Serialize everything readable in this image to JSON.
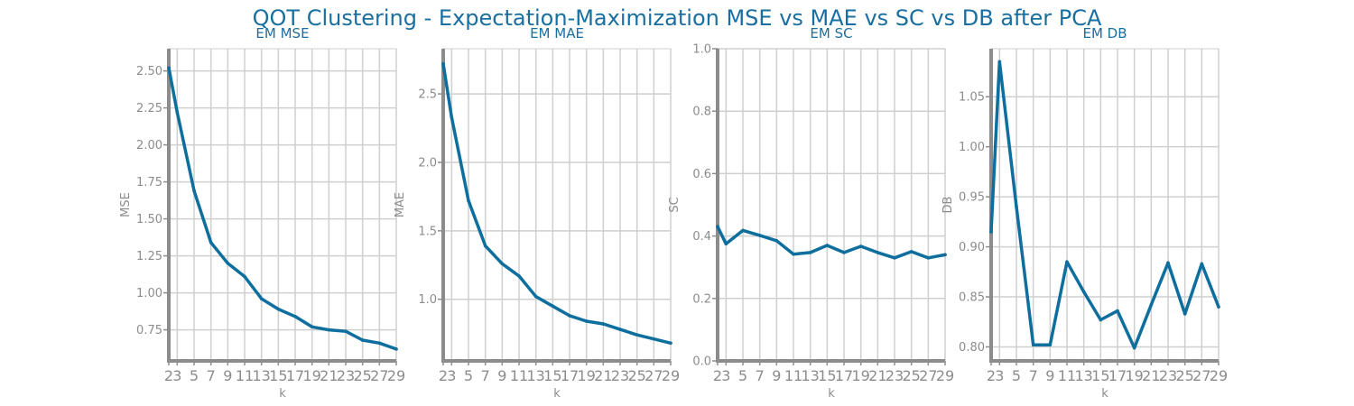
{
  "title": "QOT Clustering - Expectation-Maximization MSE vs MAE vs SC vs DB after PCA",
  "colors": {
    "title": "#1a6fa0",
    "line": "#0e6f9e",
    "grid": "#cfcfcf",
    "spine": "#8c8c8c",
    "tick_label": "#8c8c8c"
  },
  "chart_data": [
    {
      "type": "line",
      "title": "EM MSE",
      "xlabel": "k",
      "ylabel": "MSE",
      "xlim": [
        2,
        29
      ],
      "ylim": [
        0.54,
        2.65
      ],
      "xticks": [
        2,
        3,
        5,
        7,
        9,
        11,
        13,
        15,
        17,
        19,
        21,
        23,
        25,
        27,
        29
      ],
      "xtick_labels": [
        "2",
        "3",
        "5",
        "7",
        "9",
        "11",
        "13",
        "15",
        "17",
        "19",
        "21",
        "23",
        "25",
        "27",
        "29"
      ],
      "yticks": [
        0.75,
        1.0,
        1.25,
        1.5,
        1.75,
        2.0,
        2.25,
        2.5
      ],
      "ytick_labels": [
        "0.75",
        "1.00",
        "1.25",
        "1.50",
        "1.75",
        "2.00",
        "2.25",
        "2.50"
      ],
      "grid": true,
      "x": [
        2,
        3,
        5,
        7,
        9,
        11,
        13,
        15,
        17,
        19,
        21,
        23,
        25,
        27,
        29
      ],
      "y": [
        2.52,
        2.22,
        1.69,
        1.34,
        1.2,
        1.11,
        0.96,
        0.89,
        0.84,
        0.77,
        0.75,
        0.74,
        0.68,
        0.66,
        0.62
      ]
    },
    {
      "type": "line",
      "title": "EM MAE",
      "xlabel": "k",
      "ylabel": "MAE",
      "xlim": [
        2,
        29
      ],
      "ylim": [
        0.55,
        2.83
      ],
      "xticks": [
        2,
        3,
        5,
        7,
        9,
        11,
        13,
        15,
        17,
        19,
        21,
        23,
        25,
        27,
        29
      ],
      "xtick_labels": [
        "2",
        "3",
        "5",
        "7",
        "9",
        "11",
        "13",
        "15",
        "17",
        "19",
        "21",
        "23",
        "25",
        "27",
        "29"
      ],
      "yticks": [
        1.0,
        1.5,
        2.0,
        2.5
      ],
      "ytick_labels": [
        "1.0",
        "1.5",
        "2.0",
        "2.5"
      ],
      "grid": true,
      "x": [
        2,
        3,
        5,
        7,
        9,
        11,
        13,
        15,
        17,
        19,
        21,
        23,
        25,
        27,
        29
      ],
      "y": [
        2.72,
        2.33,
        1.72,
        1.39,
        1.26,
        1.17,
        1.02,
        0.95,
        0.88,
        0.84,
        0.82,
        0.78,
        0.74,
        0.71,
        0.68
      ]
    },
    {
      "type": "line",
      "title": "EM SC",
      "xlabel": "k",
      "ylabel": "SC",
      "xlim": [
        2,
        29
      ],
      "ylim": [
        0.0,
        1.0
      ],
      "xticks": [
        2,
        3,
        5,
        7,
        9,
        11,
        13,
        15,
        17,
        19,
        21,
        23,
        25,
        27,
        29
      ],
      "xtick_labels": [
        "2",
        "3",
        "5",
        "7",
        "9",
        "11",
        "13",
        "15",
        "17",
        "19",
        "21",
        "23",
        "25",
        "27",
        "29"
      ],
      "yticks": [
        0.0,
        0.2,
        0.4,
        0.6,
        0.8,
        1.0
      ],
      "ytick_labels": [
        "0.0",
        "0.2",
        "0.4",
        "0.6",
        "0.8",
        "1.0"
      ],
      "grid": true,
      "x": [
        2,
        3,
        5,
        7,
        9,
        11,
        13,
        15,
        17,
        19,
        21,
        23,
        25,
        27,
        29
      ],
      "y": [
        0.43,
        0.375,
        0.418,
        0.402,
        0.385,
        0.342,
        0.347,
        0.37,
        0.347,
        0.367,
        0.347,
        0.33,
        0.35,
        0.33,
        0.34
      ]
    },
    {
      "type": "line",
      "title": "EM DB",
      "xlabel": "k",
      "ylabel": "DB",
      "xlim": [
        2,
        29
      ],
      "ylim": [
        0.786,
        1.098
      ],
      "xticks": [
        2,
        3,
        5,
        7,
        9,
        11,
        13,
        15,
        17,
        19,
        21,
        23,
        25,
        27,
        29
      ],
      "xtick_labels": [
        "2",
        "3",
        "5",
        "7",
        "9",
        "11",
        "13",
        "15",
        "17",
        "19",
        "21",
        "23",
        "25",
        "27",
        "29"
      ],
      "yticks": [
        0.8,
        0.85,
        0.9,
        0.95,
        1.0,
        1.05
      ],
      "ytick_labels": [
        "0.80",
        "0.85",
        "0.90",
        "0.95",
        "1.00",
        "1.05"
      ],
      "grid": true,
      "x": [
        2,
        3,
        5,
        7,
        9,
        11,
        13,
        15,
        17,
        19,
        21,
        23,
        25,
        27,
        29
      ],
      "y": [
        0.915,
        1.085,
        0.94,
        0.802,
        0.802,
        0.885,
        0.855,
        0.827,
        0.836,
        0.799,
        0.842,
        0.884,
        0.833,
        0.883,
        0.84
      ]
    }
  ]
}
